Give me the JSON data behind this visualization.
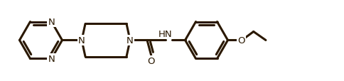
{
  "bg_color": "#ffffff",
  "line_color": "#2a1800",
  "line_width": 2.2,
  "label_color": "#2a1800",
  "label_fontsize": 9.5,
  "fig_width": 4.85,
  "fig_height": 1.15,
  "dpi": 100,
  "xlim": [
    0.0,
    9.7
  ],
  "ylim": [
    0.05,
    2.05
  ]
}
